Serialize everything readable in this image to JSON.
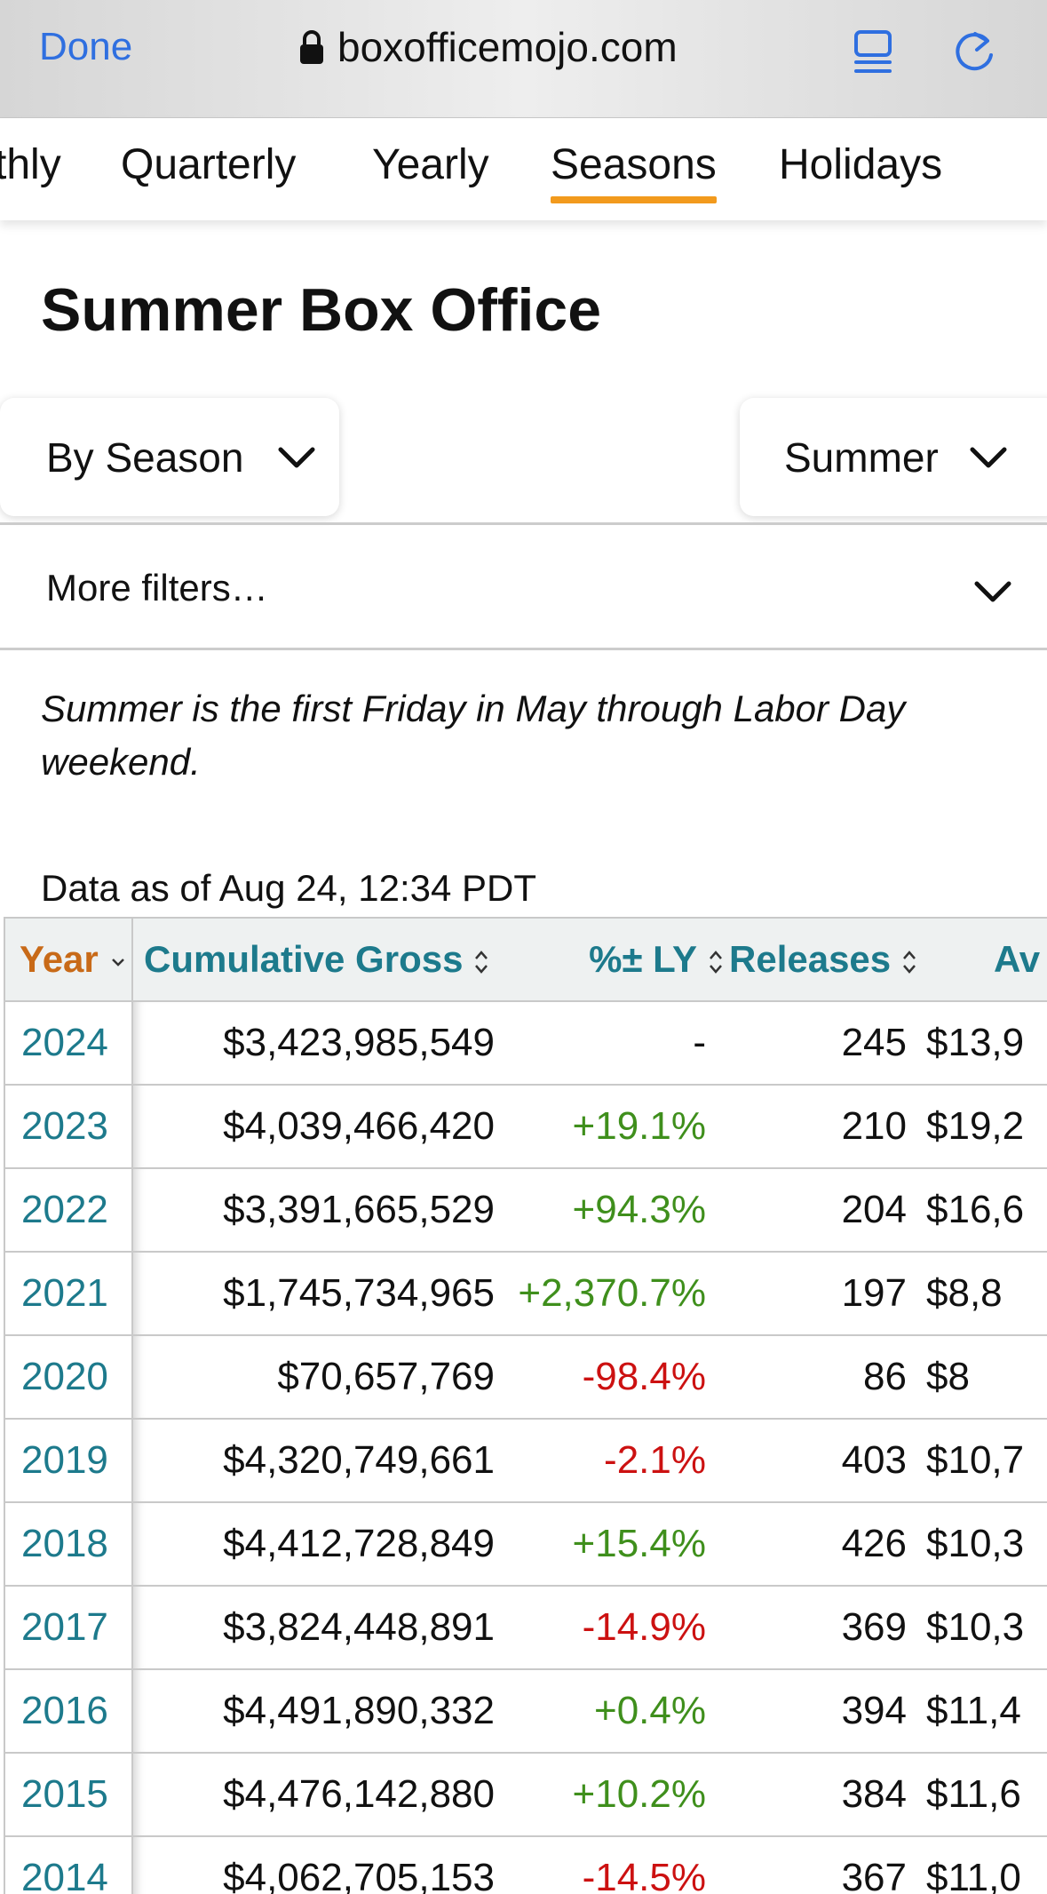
{
  "browser": {
    "done_label": "Done",
    "url": "boxofficemojo.com",
    "icons": [
      "lock-icon",
      "reader-mode-icon",
      "reload-icon"
    ]
  },
  "tabs": [
    {
      "label": "thly",
      "active": false
    },
    {
      "label": "Quarterly",
      "active": false
    },
    {
      "label": "Yearly",
      "active": false
    },
    {
      "label": "Seasons",
      "active": true
    },
    {
      "label": "Holidays",
      "active": false
    }
  ],
  "page": {
    "title": "Summer Box Office",
    "note": "Summer is the first Friday in May through Labor Day weekend.",
    "data_as_of": "Data as of Aug 24, 12:34 PDT"
  },
  "filters": {
    "view_selected": "By Season",
    "season_selected": "Summer",
    "more_filters_label": "More filters…"
  },
  "table": {
    "columns": [
      {
        "key": "year",
        "label": "Year",
        "sort": "desc"
      },
      {
        "key": "gross",
        "label": "Cumulative Gross",
        "sort": "both"
      },
      {
        "key": "pct",
        "label": "%± LY",
        "sort": "both"
      },
      {
        "key": "releases",
        "label": "Releases",
        "sort": "both"
      },
      {
        "key": "avg",
        "label": "Av",
        "sort": "none"
      }
    ],
    "rows": [
      {
        "year": "2024",
        "gross": "$3,423,985,549",
        "pct": "-",
        "pct_sign": "none",
        "releases": "245",
        "avg": "$13,9"
      },
      {
        "year": "2023",
        "gross": "$4,039,466,420",
        "pct": "+19.1%",
        "pct_sign": "pos",
        "releases": "210",
        "avg": "$19,2"
      },
      {
        "year": "2022",
        "gross": "$3,391,665,529",
        "pct": "+94.3%",
        "pct_sign": "pos",
        "releases": "204",
        "avg": "$16,6"
      },
      {
        "year": "2021",
        "gross": "$1,745,734,965",
        "pct": "+2,370.7%",
        "pct_sign": "pos",
        "releases": "197",
        "avg": "$8,8"
      },
      {
        "year": "2020",
        "gross": "$70,657,769",
        "pct": "-98.4%",
        "pct_sign": "neg",
        "releases": "86",
        "avg": "$8"
      },
      {
        "year": "2019",
        "gross": "$4,320,749,661",
        "pct": "-2.1%",
        "pct_sign": "neg",
        "releases": "403",
        "avg": "$10,7"
      },
      {
        "year": "2018",
        "gross": "$4,412,728,849",
        "pct": "+15.4%",
        "pct_sign": "pos",
        "releases": "426",
        "avg": "$10,3"
      },
      {
        "year": "2017",
        "gross": "$3,824,448,891",
        "pct": "-14.9%",
        "pct_sign": "neg",
        "releases": "369",
        "avg": "$10,3"
      },
      {
        "year": "2016",
        "gross": "$4,491,890,332",
        "pct": "+0.4%",
        "pct_sign": "pos",
        "releases": "394",
        "avg": "$11,4"
      },
      {
        "year": "2015",
        "gross": "$4,476,142,880",
        "pct": "+10.2%",
        "pct_sign": "pos",
        "releases": "384",
        "avg": "$11,6"
      },
      {
        "year": "2014",
        "gross": "$4,062,705,153",
        "pct": "-14.5%",
        "pct_sign": "neg",
        "releases": "367",
        "avg": "$11,0"
      }
    ]
  },
  "colors": {
    "link_blue": "#2f6fe0",
    "tab_underline": "#f29a1d",
    "teal": "#1d7a8c",
    "year_header": "#c86a18",
    "positive": "#3f8f1c",
    "negative": "#cc1111"
  }
}
